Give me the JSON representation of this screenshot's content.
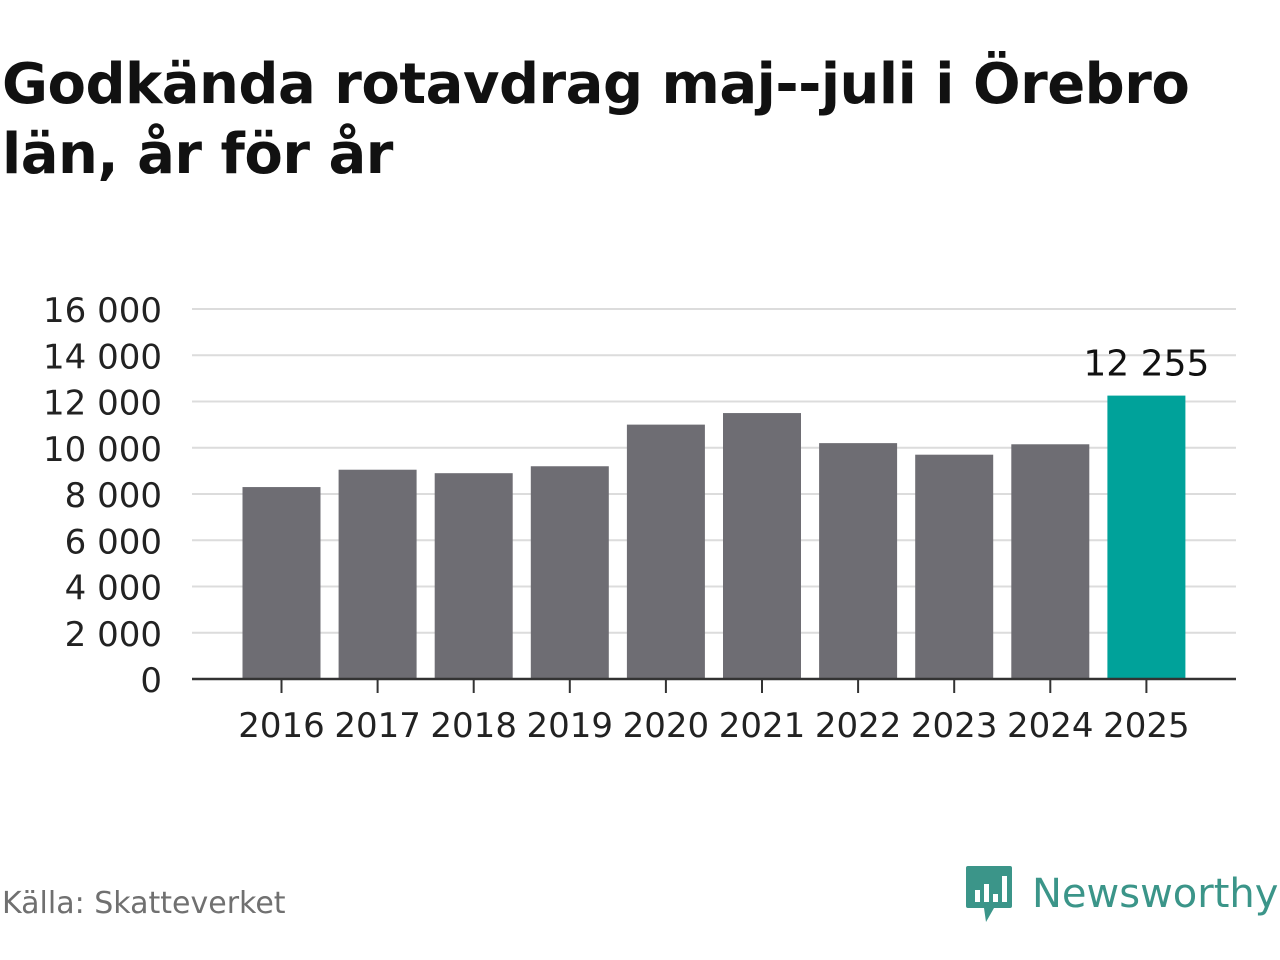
{
  "chart_data": {
    "type": "bar",
    "title": "Godkända rotavdrag maj--juli i Örebro län, år för år",
    "categories": [
      "2016",
      "2017",
      "2018",
      "2019",
      "2020",
      "2021",
      "2022",
      "2023",
      "2024",
      "2025"
    ],
    "values": [
      8300,
      9050,
      8900,
      9200,
      11000,
      11500,
      10200,
      9700,
      10150,
      12255
    ],
    "highlight_index": 9,
    "highlight_label": "12 255",
    "y_ticks": [
      "0",
      "2 000",
      "4 000",
      "6 000",
      "8 000",
      "10 000",
      "12 000",
      "14 000",
      "16 000"
    ],
    "ylim": [
      0,
      16000
    ],
    "grid": true,
    "colors": {
      "bar": "#6e6d73",
      "highlight": "#00a29a",
      "grid": "#dcdcdc",
      "axis": "#333333"
    }
  },
  "footer": {
    "source": "Källa: Skatteverket",
    "brand": "Newsworthy",
    "brand_icon": "newsworthy-logo-icon"
  }
}
